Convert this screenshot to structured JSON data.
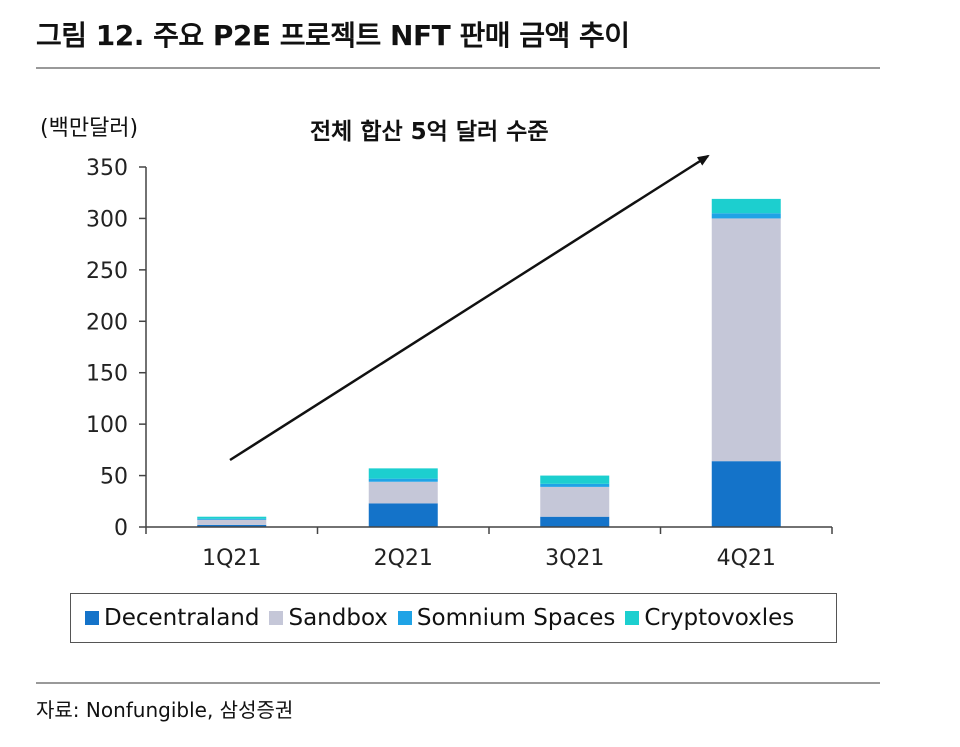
{
  "title": "그림 12. 주요 P2E 프로젝트 NFT 판매 금액 추이",
  "unit_label": "(백만달러)",
  "annotation": "전체 합산 5억 달러 수준",
  "source": "자료: Nonfungible, 삼성증권",
  "chart_data": {
    "type": "bar",
    "stacked": true,
    "categories": [
      "1Q21",
      "2Q21",
      "3Q21",
      "4Q21"
    ],
    "series": [
      {
        "name": "Decentraland",
        "color": "#1473c9",
        "values": [
          2,
          23,
          10,
          64
        ]
      },
      {
        "name": "Sandbox",
        "color": "#c5c7d8",
        "values": [
          5,
          21,
          29,
          236
        ]
      },
      {
        "name": "Somnium Spaces",
        "color": "#1fa3e6",
        "values": [
          1,
          3,
          3,
          5
        ]
      },
      {
        "name": "Cryptovoxles",
        "color": "#1ccfcf",
        "values": [
          2,
          10,
          8,
          14
        ]
      }
    ],
    "ylim": [
      0,
      350
    ],
    "yticks": [
      0,
      50,
      100,
      150,
      200,
      250,
      300,
      350
    ],
    "grid": false,
    "legend_position": "bottom"
  }
}
